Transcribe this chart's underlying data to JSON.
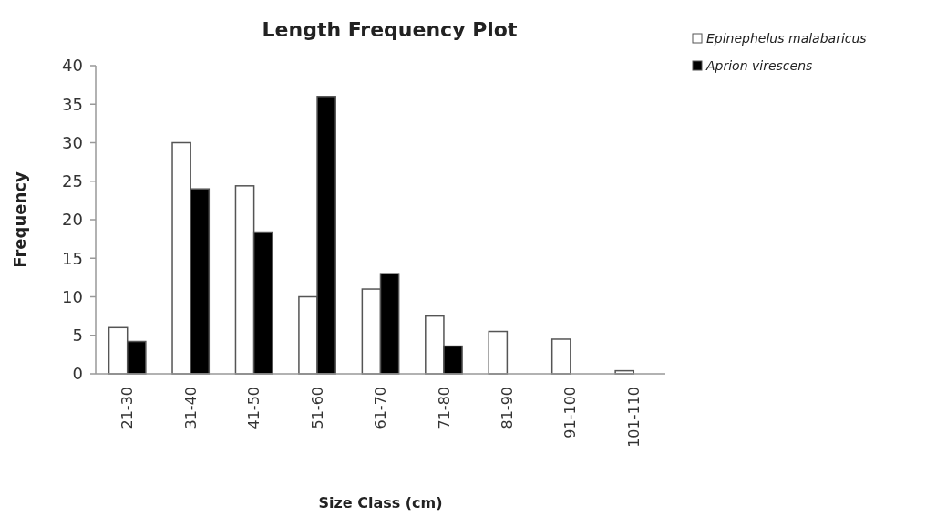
{
  "chart_data": {
    "type": "bar",
    "title": "Length Frequency Plot",
    "xlabel": "Size Class (cm)",
    "ylabel": "Frequency",
    "categories": [
      "21-30",
      "31-40",
      "41-50",
      "51-60",
      "61-70",
      "71-80",
      "81-90",
      "91-100",
      "101-110"
    ],
    "series": [
      {
        "name": "Epinephelus malabaricus",
        "color": "#ffffff",
        "values": [
          6,
          30,
          24.4,
          10,
          11,
          7.5,
          5.5,
          4.5,
          0.4
        ]
      },
      {
        "name": "Aprion virescens",
        "color": "#000000",
        "values": [
          4.2,
          24,
          18.4,
          36,
          13,
          3.6,
          0,
          0,
          0
        ]
      }
    ],
    "ylim": [
      0,
      40
    ],
    "yticks": [
      0,
      5,
      10,
      15,
      20,
      25,
      30,
      35,
      40
    ],
    "grid": false,
    "legend": "top right"
  }
}
